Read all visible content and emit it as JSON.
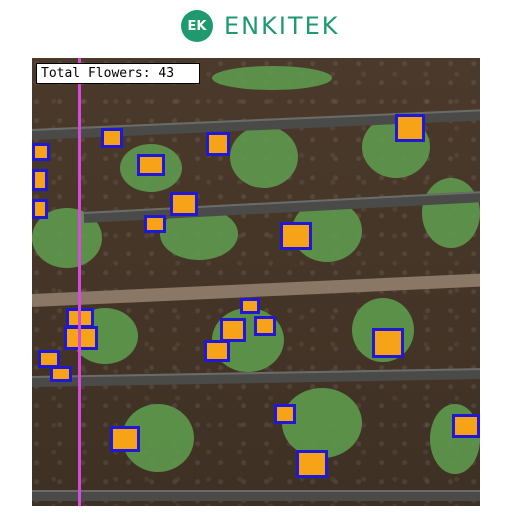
{
  "brand": {
    "logo_mark": "EK",
    "name": "ENKITEK",
    "color": "#1f9a6f"
  },
  "image": {
    "counter_label": "Total Flowers: 43",
    "box_color": "#1f18d6",
    "line_color": "#d84ad8",
    "flower_color": "#f6a317"
  }
}
